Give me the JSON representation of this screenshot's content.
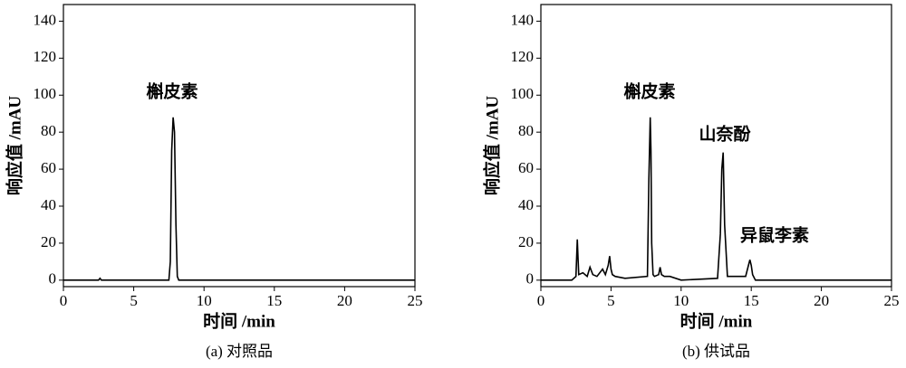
{
  "chart_data": [
    {
      "type": "line",
      "caption": "(a) 对照品",
      "xlabel": "时间 /min",
      "ylabel": "响应值 /mAU",
      "annotations": [
        "槲皮素"
      ],
      "color": "#000000",
      "x": [
        0,
        2.5,
        2.6,
        2.7,
        7.5,
        7.6,
        7.7,
        7.8,
        7.9,
        8.0,
        8.1,
        8.2,
        25
      ],
      "values": [
        0,
        0,
        1,
        0,
        0,
        10,
        70,
        88,
        80,
        30,
        2,
        0,
        0
      ],
      "xlim": [
        0,
        25
      ],
      "ylim": [
        -3.5,
        149
      ],
      "xticks": [
        0,
        5,
        10,
        15,
        20,
        25
      ],
      "yticks": [
        0,
        20,
        40,
        60,
        80,
        100,
        120,
        140
      ]
    },
    {
      "type": "line",
      "caption": "(b) 供试品",
      "xlabel": "时间 /min",
      "ylabel": "响应值 /mAU",
      "annotations": [
        "槲皮素",
        "山奈酚",
        "异鼠李素"
      ],
      "color": "#000000",
      "x": [
        0,
        2.2,
        2.5,
        2.6,
        2.65,
        2.7,
        3.0,
        3.3,
        3.5,
        3.7,
        4.0,
        4.4,
        4.6,
        4.8,
        4.9,
        5.0,
        5.1,
        5.3,
        6,
        7.6,
        7.7,
        7.8,
        7.85,
        7.9,
        8.0,
        8.1,
        8.4,
        8.5,
        8.6,
        8.8,
        9.2,
        10,
        12.6,
        12.8,
        12.9,
        13.0,
        13.1,
        13.3,
        14.6,
        14.8,
        14.9,
        15.0,
        15.1,
        15.3,
        18,
        25
      ],
      "values": [
        0,
        0,
        2,
        22,
        12,
        3,
        4,
        2,
        7,
        3,
        2,
        6,
        3,
        8,
        13,
        6,
        3,
        2,
        1,
        2,
        55,
        88,
        70,
        20,
        3,
        2,
        3,
        7,
        3,
        2,
        2,
        0,
        1,
        25,
        60,
        69,
        30,
        2,
        2,
        8,
        11,
        8,
        3,
        0,
        0,
        0
      ],
      "xlim": [
        0,
        25
      ],
      "ylim": [
        -3.5,
        149
      ],
      "xticks": [
        0,
        5,
        10,
        15,
        20,
        25
      ],
      "yticks": [
        0,
        20,
        40,
        60,
        80,
        100,
        120,
        140
      ]
    }
  ]
}
